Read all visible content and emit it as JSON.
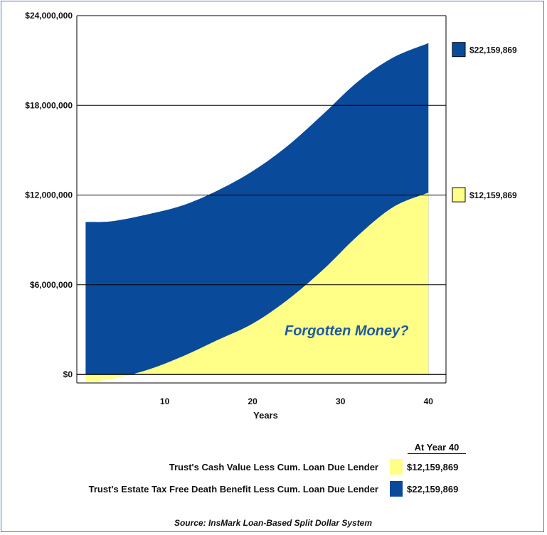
{
  "chart_data": {
    "type": "area",
    "xlabel": "Years",
    "ylabel": "",
    "xlim": [
      0,
      42
    ],
    "ylim": [
      0,
      24000000
    ],
    "x_ticks": [
      {
        "value": 10,
        "label": "10"
      },
      {
        "value": 20,
        "label": "20"
      },
      {
        "value": 30,
        "label": "30"
      },
      {
        "value": 40,
        "label": "40"
      }
    ],
    "y_ticks": [
      {
        "value": 0,
        "label": "$0"
      },
      {
        "value": 6000000,
        "label": "$6,000,000"
      },
      {
        "value": 12000000,
        "label": "$12,000,000"
      },
      {
        "value": 18000000,
        "label": "$18,000,000"
      },
      {
        "value": 24000000,
        "label": "$24,000,000"
      }
    ],
    "grid": "horizontal",
    "x": [
      1,
      4,
      8,
      12,
      16,
      20,
      24,
      28,
      32,
      36,
      40
    ],
    "series": [
      {
        "name": "Trust's Estate Tax Free Death Benefit Less Cum. Loan Due Lender",
        "color": "#0a4a9a",
        "values": [
          10200000,
          10250000,
          10700000,
          11300000,
          12300000,
          13600000,
          15300000,
          17400000,
          19600000,
          21200000,
          22159869
        ],
        "end_label": "$22,159,869",
        "legend_value": "$22,159,869"
      },
      {
        "name": "Trust's Cash Value Less Cum. Loan Due Lender",
        "color": "#ffff88",
        "values": [
          -500000,
          -300000,
          300000,
          1200000,
          2300000,
          3400000,
          5000000,
          7000000,
          9300000,
          11200000,
          12159869
        ],
        "end_label": "$12,159,869",
        "legend_value": "$12,159,869"
      }
    ],
    "annotation": "Forgotten Money?",
    "legend_header": "At Year 40",
    "legend_placement": "bottom"
  },
  "source": "Source: InsMark Loan-Based Split Dollar System"
}
